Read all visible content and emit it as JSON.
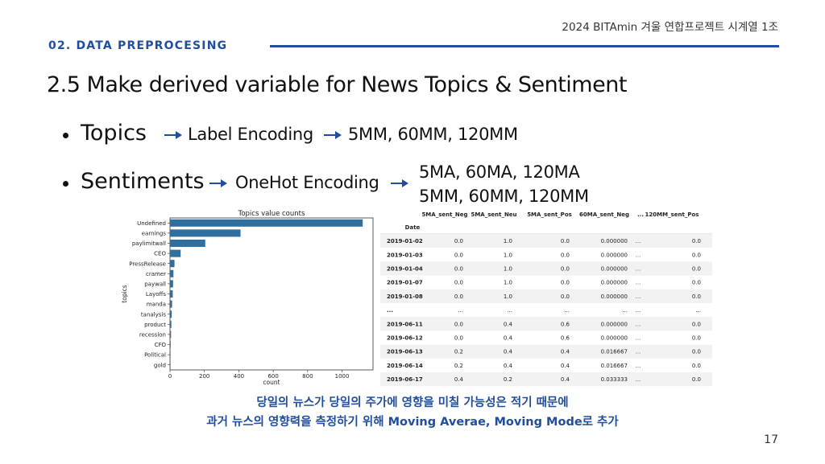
{
  "header": {
    "right_text": "2024 BITAmin 겨울 연합프로젝트 시계열 1조",
    "section": "02. DATA PREPROCESING"
  },
  "slide": {
    "title": "2.5 Make derived variable for News Topics & Sentiment",
    "bullets": [
      {
        "label": "Topics",
        "steps": [
          "Label Encoding",
          "5MM, 60MM, 120MM"
        ]
      },
      {
        "label": "Sentiments",
        "steps": [
          "OneHot Encoding",
          "5MA, 60MA, 120MA",
          "5MM, 60MM, 120MM"
        ]
      }
    ],
    "caption_line1": "당일의 뉴스가 당일의 주가에 영향을 미칠 가능성은 적기 때문에",
    "caption_line2": "과거 뉴스의 영향력을 측정하기 위해 Moving Averae, Moving Mode로 추가",
    "page_number": "17"
  },
  "chart_data": {
    "type": "bar",
    "orientation": "horizontal",
    "title": "Topics value counts",
    "xlabel": "count",
    "ylabel": "topics",
    "categories": [
      "Undefined",
      "earnings",
      "paylimitwall",
      "CEO",
      "PressRelease",
      "cramer",
      "paywall",
      "Layoffs",
      "manda",
      "tanalysis",
      "product",
      "recession",
      "CFO",
      "Political",
      "gold"
    ],
    "values": [
      1120,
      410,
      205,
      62,
      26,
      20,
      18,
      16,
      12,
      10,
      8,
      6,
      4,
      3,
      2
    ],
    "xlim": [
      0,
      1180
    ],
    "xticks": [
      0,
      200,
      400,
      600,
      800,
      1000
    ],
    "grid": false,
    "color": "#2f6f9f"
  },
  "table": {
    "columns": [
      "5MA_sent_Neg",
      "5MA_sent_Neu",
      "5MA_sent_Pos",
      "60MA_sent_Neg",
      "...",
      "120MM_sent_Pos"
    ],
    "index_name": "Date",
    "rows": [
      [
        "2019-01-02",
        "0.0",
        "1.0",
        "0.0",
        "0.000000",
        "...",
        "0.0"
      ],
      [
        "2019-01-03",
        "0.0",
        "1.0",
        "0.0",
        "0.000000",
        "...",
        "0.0"
      ],
      [
        "2019-01-04",
        "0.0",
        "1.0",
        "0.0",
        "0.000000",
        "...",
        "0.0"
      ],
      [
        "2019-01-07",
        "0.0",
        "1.0",
        "0.0",
        "0.000000",
        "...",
        "0.0"
      ],
      [
        "2019-01-08",
        "0.0",
        "1.0",
        "0.0",
        "0.000000",
        "...",
        "0.0"
      ],
      [
        "...",
        "...",
        "...",
        "...",
        "...",
        "...",
        "..."
      ],
      [
        "2019-06-11",
        "0.0",
        "0.4",
        "0.6",
        "0.000000",
        "...",
        "0.0"
      ],
      [
        "2019-06-12",
        "0.0",
        "0.4",
        "0.6",
        "0.000000",
        "...",
        "0.0"
      ],
      [
        "2019-06-13",
        "0.2",
        "0.4",
        "0.4",
        "0.016667",
        "...",
        "0.0"
      ],
      [
        "2019-06-14",
        "0.2",
        "0.4",
        "0.4",
        "0.016667",
        "...",
        "0.0"
      ],
      [
        "2019-06-17",
        "0.4",
        "0.2",
        "0.4",
        "0.033333",
        "...",
        "0.0"
      ]
    ]
  },
  "colors": {
    "accent": "#1f4e9e",
    "bar": "#2f6f9f",
    "row_shade": "#f2f2f2"
  }
}
